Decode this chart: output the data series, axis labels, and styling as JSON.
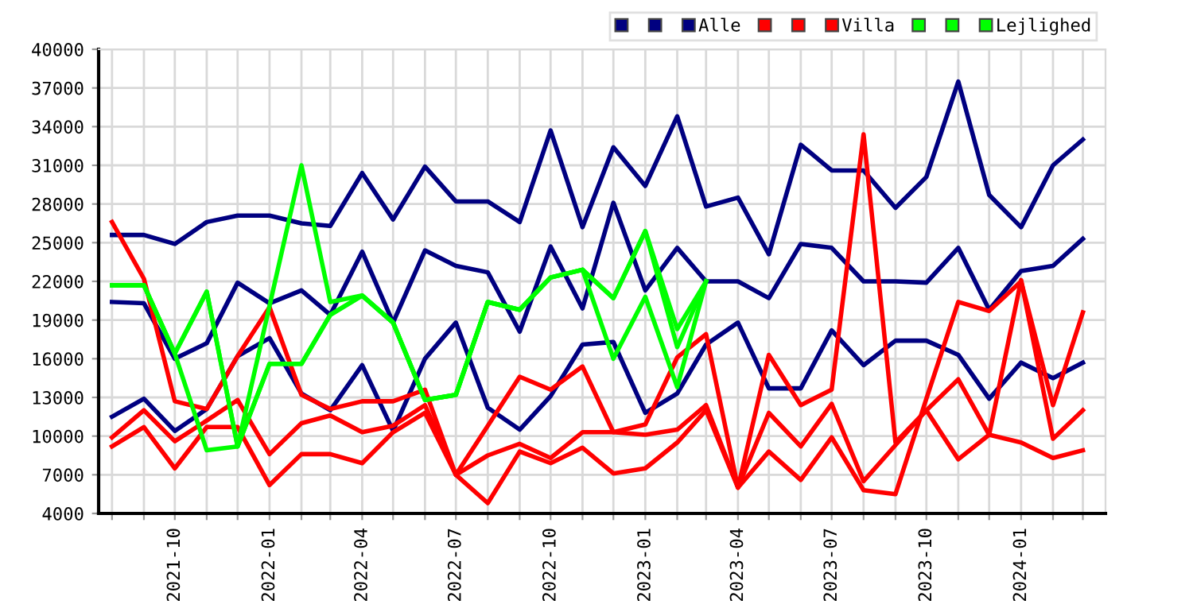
{
  "chart_data": {
    "type": "line",
    "x": [
      "2021-08",
      "2021-09",
      "2021-10",
      "2021-11",
      "2021-12",
      "2022-01",
      "2022-02",
      "2022-03",
      "2022-04",
      "2022-05",
      "2022-06",
      "2022-07",
      "2022-08",
      "2022-09",
      "2022-10",
      "2022-11",
      "2022-12",
      "2023-01",
      "2023-02",
      "2023-03",
      "2023-04",
      "2023-05",
      "2023-06",
      "2023-07",
      "2023-08",
      "2023-09",
      "2023-10",
      "2023-11",
      "2023-12",
      "2024-01",
      "2024-02",
      "2024-03"
    ],
    "series": [
      {
        "color": "#000080",
        "values": [
          25600,
          25600,
          24900,
          26600,
          27100,
          27100,
          26500,
          26300,
          30400,
          26800,
          30900,
          28200,
          28200,
          26600,
          33700,
          26200,
          32400,
          29400,
          34800,
          27800,
          28500,
          24100,
          32600,
          30600,
          30600,
          27700,
          30100,
          37500,
          28700,
          26200,
          31000,
          33000
        ]
      },
      {
        "color": "#000080",
        "values": [
          20400,
          20300,
          16000,
          17200,
          21900,
          20300,
          21300,
          19400,
          24300,
          18800,
          24400,
          23200,
          22700,
          18100,
          24700,
          19900,
          28100,
          21300,
          24600,
          22000,
          22000,
          20700,
          24900,
          24600,
          22000,
          22000,
          21900,
          24600,
          19800,
          22800,
          23200,
          25300
        ]
      },
      {
        "name": "Alle",
        "color": "#000080",
        "values": [
          11500,
          12900,
          10400,
          12100,
          16200,
          17600,
          13300,
          12000,
          15500,
          10400,
          16000,
          18800,
          12200,
          10500,
          13100,
          17100,
          17300,
          11800,
          13300,
          17100,
          18800,
          13700,
          13700,
          18200,
          15500,
          17400,
          17400,
          16300,
          12900,
          15700,
          14500,
          15700
        ]
      },
      {
        "color": "#ff0000",
        "values": [
          26600,
          22200,
          12700,
          12100,
          16200,
          20000,
          13200,
          12100,
          12700,
          12700,
          13600,
          7000,
          10800,
          14600,
          13600,
          15400,
          10300,
          10900,
          16100,
          17900,
          6000,
          16300,
          12400,
          13600,
          33400,
          9500,
          12000,
          14400,
          10100,
          22100,
          9800,
          12000
        ]
      },
      {
        "color": "#ff0000",
        "values": [
          9900,
          12000,
          9600,
          11200,
          12800,
          8600,
          11000,
          11600,
          10300,
          10800,
          12400,
          7000,
          8500,
          9400,
          8300,
          10300,
          10300,
          10100,
          10500,
          12400,
          6000,
          11800,
          9200,
          12500,
          6500,
          9300,
          12000,
          8200,
          10100,
          9500,
          8300,
          8900
        ]
      },
      {
        "name": "Villa",
        "color": "#ff0000",
        "values": [
          9200,
          10700,
          7500,
          10700,
          10700,
          6200,
          8600,
          8600,
          7900,
          10300,
          11800,
          7000,
          4800,
          8800,
          7900,
          9100,
          7100,
          7500,
          9500,
          12000,
          6000,
          8800,
          6600,
          9900,
          5800,
          5500,
          12900,
          20400,
          19700,
          22000,
          12400,
          19600
        ]
      },
      {
        "color": "#00ff00",
        "values": [
          21700,
          21700,
          16400,
          8900,
          9200,
          20100,
          31000,
          20400,
          20900,
          18800,
          12800,
          13200,
          20400,
          19800,
          22300,
          22900,
          20700,
          25900,
          18300,
          22000,
          null,
          null,
          null,
          null,
          null,
          null,
          null,
          null,
          null,
          null,
          null,
          null
        ]
      },
      {
        "color": "#00ff00",
        "values": [
          21700,
          21700,
          16400,
          21200,
          9200,
          15600,
          15600,
          19400,
          20900,
          18800,
          12800,
          13200,
          20400,
          19800,
          22300,
          22900,
          16000,
          20800,
          13800,
          22000,
          null,
          null,
          null,
          null,
          null,
          null,
          null,
          null,
          null,
          null,
          null,
          null
        ]
      },
      {
        "name": "Lejlighed",
        "color": "#00ff00",
        "values": [
          21700,
          21700,
          16400,
          21200,
          9200,
          15600,
          15600,
          19400,
          20900,
          18800,
          12800,
          13200,
          20400,
          19800,
          22300,
          22900,
          20700,
          25900,
          16900,
          22000,
          null,
          null,
          null,
          null,
          null,
          null,
          null,
          null,
          null,
          null,
          null,
          null
        ]
      }
    ],
    "xlim": [
      "2021-07-19",
      "2024-03-23"
    ],
    "xticks": [
      {
        "value": "2021-08",
        "label": null
      },
      {
        "value": "2021-09",
        "label": null
      },
      "2021-10",
      {
        "value": "2021-11",
        "label": null
      },
      {
        "value": "2021-12",
        "label": null
      },
      "2022-01",
      {
        "value": "2022-02",
        "label": null
      },
      {
        "value": "2022-03",
        "label": null
      },
      "2022-04",
      {
        "value": "2022-05",
        "label": null
      },
      {
        "value": "2022-06",
        "label": null
      },
      "2022-07",
      {
        "value": "2022-08",
        "label": null
      },
      {
        "value": "2022-09",
        "label": null
      },
      "2022-10",
      {
        "value": "2022-11",
        "label": null
      },
      {
        "value": "2022-12",
        "label": null
      },
      "2023-01",
      {
        "value": "2023-02",
        "label": null
      },
      {
        "value": "2023-03",
        "label": null
      },
      "2023-04",
      {
        "value": "2023-05",
        "label": null
      },
      {
        "value": "2023-06",
        "label": null
      },
      "2023-07",
      {
        "value": "2023-08",
        "label": null
      },
      {
        "value": "2023-09",
        "label": null
      },
      "2023-10",
      {
        "value": "2023-11",
        "label": null
      },
      {
        "value": "2023-12",
        "label": null
      },
      "2024-01",
      {
        "value": "2024-02",
        "label": null
      },
      {
        "value": "2024-03",
        "label": null
      }
    ],
    "ylim": [
      4000,
      40000
    ],
    "yticks": [
      4000,
      7000,
      10000,
      13000,
      16000,
      19000,
      22000,
      25000,
      28000,
      31000,
      34000,
      37000,
      40000
    ],
    "grid": true,
    "legend": "top right",
    "marker": "none",
    "line_style": "solid"
  }
}
